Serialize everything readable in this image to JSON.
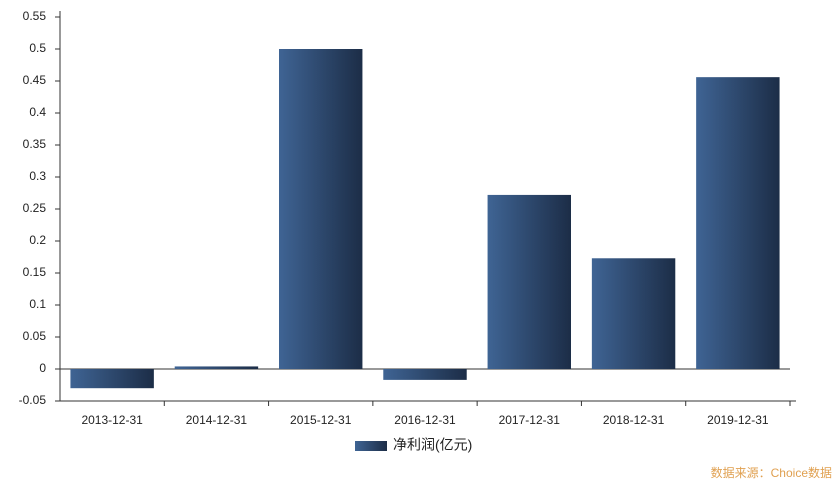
{
  "chart_data": {
    "type": "bar",
    "categories": [
      "2013-12-31",
      "2014-12-31",
      "2015-12-31",
      "2016-12-31",
      "2017-12-31",
      "2018-12-31",
      "2019-12-31"
    ],
    "series": [
      {
        "name": "净利润(亿元)",
        "color": "#2e4b73",
        "values": [
          -0.03,
          0.004,
          0.5,
          -0.017,
          0.272,
          0.173,
          0.456
        ]
      }
    ],
    "ylim": [
      -0.05,
      0.55
    ],
    "yticks": [
      -0.05,
      0,
      0.05,
      0.1,
      0.15,
      0.2,
      0.25,
      0.3,
      0.35,
      0.4,
      0.45,
      0.5,
      0.55
    ],
    "legend": "bottom",
    "source": "数据来源：Choice数据"
  }
}
